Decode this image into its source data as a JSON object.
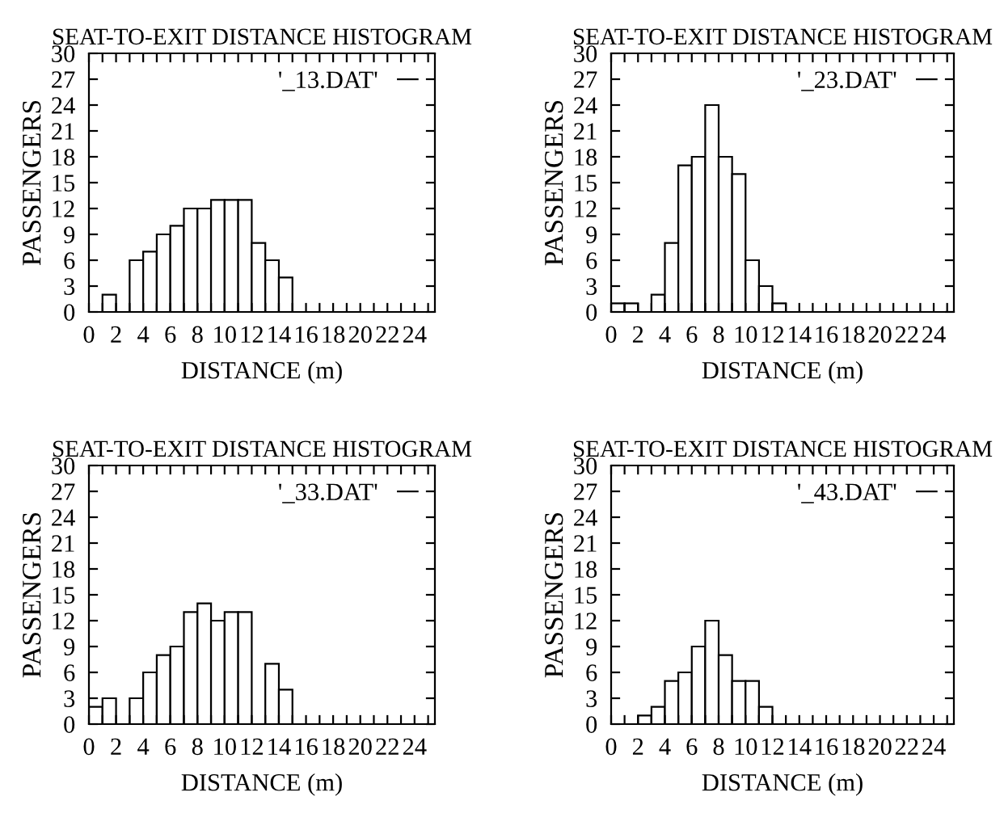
{
  "chart_data": [
    {
      "type": "histogram",
      "title": "SEAT-TO-EXIT DISTANCE HISTOGRAM",
      "xlabel": "DISTANCE (m)",
      "ylabel": "PASSENGERS",
      "bins": [
        0,
        1,
        2,
        3,
        4,
        5,
        6,
        7,
        8,
        9,
        10,
        11,
        12,
        13,
        14,
        15,
        16,
        17,
        18,
        19,
        20,
        21,
        22,
        23,
        24,
        25
      ],
      "series": [
        {
          "name": "'_13.DAT'",
          "color": "#000000",
          "values": [
            0,
            2,
            0,
            6,
            7,
            9,
            10,
            12,
            12,
            13,
            13,
            13,
            8,
            6,
            4,
            0,
            0,
            0,
            0,
            0,
            0,
            0,
            0,
            0,
            0
          ]
        }
      ],
      "xlim": [
        0,
        25.5
      ],
      "ylim": [
        0,
        30
      ],
      "xticks": [
        0,
        {
          "value": 1,
          "label": null
        },
        2,
        {
          "value": 3,
          "label": null
        },
        4,
        {
          "value": 5,
          "label": null
        },
        6,
        {
          "value": 7,
          "label": null
        },
        8,
        {
          "value": 9,
          "label": null
        },
        10,
        {
          "value": 11,
          "label": null
        },
        12,
        {
          "value": 13,
          "label": null
        },
        14,
        {
          "value": 15,
          "label": null
        },
        16,
        {
          "value": 17,
          "label": null
        },
        18,
        {
          "value": 19,
          "label": null
        },
        20,
        {
          "value": 21,
          "label": null
        },
        22,
        {
          "value": 23,
          "label": null
        },
        24,
        {
          "value": 25,
          "label": null
        }
      ],
      "yticks": [
        0,
        3,
        6,
        9,
        12,
        15,
        18,
        21,
        24,
        27,
        30
      ],
      "legend": "top right",
      "grid": false
    },
    {
      "type": "histogram",
      "title": "SEAT-TO-EXIT DISTANCE HISTOGRAM",
      "xlabel": "DISTANCE (m)",
      "ylabel": "PASSENGERS",
      "bins": [
        0,
        1,
        2,
        3,
        4,
        5,
        6,
        7,
        8,
        9,
        10,
        11,
        12,
        13,
        14,
        15,
        16,
        17,
        18,
        19,
        20,
        21,
        22,
        23,
        24,
        25
      ],
      "series": [
        {
          "name": "'_23.DAT'",
          "color": "#000000",
          "values": [
            1,
            1,
            0,
            2,
            8,
            17,
            18,
            24,
            18,
            16,
            6,
            3,
            1,
            0,
            0,
            0,
            0,
            0,
            0,
            0,
            0,
            0,
            0,
            0,
            0
          ]
        }
      ],
      "xlim": [
        0,
        25.5
      ],
      "ylim": [
        0,
        30
      ],
      "xticks": [
        0,
        {
          "value": 1,
          "label": null
        },
        2,
        {
          "value": 3,
          "label": null
        },
        4,
        {
          "value": 5,
          "label": null
        },
        6,
        {
          "value": 7,
          "label": null
        },
        8,
        {
          "value": 9,
          "label": null
        },
        10,
        {
          "value": 11,
          "label": null
        },
        12,
        {
          "value": 13,
          "label": null
        },
        14,
        {
          "value": 15,
          "label": null
        },
        16,
        {
          "value": 17,
          "label": null
        },
        18,
        {
          "value": 19,
          "label": null
        },
        20,
        {
          "value": 21,
          "label": null
        },
        22,
        {
          "value": 23,
          "label": null
        },
        24,
        {
          "value": 25,
          "label": null
        }
      ],
      "yticks": [
        0,
        3,
        6,
        9,
        12,
        15,
        18,
        21,
        24,
        27,
        30
      ],
      "legend": "top right",
      "grid": false
    },
    {
      "type": "histogram",
      "title": "SEAT-TO-EXIT DISTANCE HISTOGRAM",
      "xlabel": "DISTANCE (m)",
      "ylabel": "PASSENGERS",
      "bins": [
        0,
        1,
        2,
        3,
        4,
        5,
        6,
        7,
        8,
        9,
        10,
        11,
        12,
        13,
        14,
        15,
        16,
        17,
        18,
        19,
        20,
        21,
        22,
        23,
        24,
        25
      ],
      "series": [
        {
          "name": "'_33.DAT'",
          "color": "#000000",
          "values": [
            2,
            3,
            0,
            3,
            6,
            8,
            9,
            13,
            14,
            12,
            13,
            13,
            0,
            7,
            4,
            0,
            0,
            0,
            0,
            0,
            0,
            0,
            0,
            0,
            0
          ]
        }
      ],
      "xlim": [
        0,
        25.5
      ],
      "ylim": [
        0,
        30
      ],
      "xticks": [
        0,
        {
          "value": 1,
          "label": null
        },
        2,
        {
          "value": 3,
          "label": null
        },
        4,
        {
          "value": 5,
          "label": null
        },
        6,
        {
          "value": 7,
          "label": null
        },
        8,
        {
          "value": 9,
          "label": null
        },
        10,
        {
          "value": 11,
          "label": null
        },
        12,
        {
          "value": 13,
          "label": null
        },
        14,
        {
          "value": 15,
          "label": null
        },
        16,
        {
          "value": 17,
          "label": null
        },
        18,
        {
          "value": 19,
          "label": null
        },
        20,
        {
          "value": 21,
          "label": null
        },
        22,
        {
          "value": 23,
          "label": null
        },
        24,
        {
          "value": 25,
          "label": null
        }
      ],
      "yticks": [
        0,
        3,
        6,
        9,
        12,
        15,
        18,
        21,
        24,
        27,
        30
      ],
      "legend": "top right",
      "grid": false
    },
    {
      "type": "histogram",
      "title": "SEAT-TO-EXIT DISTANCE HISTOGRAM",
      "xlabel": "DISTANCE (m)",
      "ylabel": "PASSENGERS",
      "bins": [
        0,
        1,
        2,
        3,
        4,
        5,
        6,
        7,
        8,
        9,
        10,
        11,
        12,
        13,
        14,
        15,
        16,
        17,
        18,
        19,
        20,
        21,
        22,
        23,
        24,
        25
      ],
      "series": [
        {
          "name": "'_43.DAT'",
          "color": "#000000",
          "values": [
            0,
            0,
            1,
            2,
            5,
            6,
            9,
            12,
            8,
            5,
            5,
            2,
            0,
            0,
            0,
            0,
            0,
            0,
            0,
            0,
            0,
            0,
            0,
            0,
            0
          ]
        }
      ],
      "xlim": [
        0,
        25.5
      ],
      "ylim": [
        0,
        30
      ],
      "xticks": [
        0,
        {
          "value": 1,
          "label": null
        },
        2,
        {
          "value": 3,
          "label": null
        },
        4,
        {
          "value": 5,
          "label": null
        },
        6,
        {
          "value": 7,
          "label": null
        },
        8,
        {
          "value": 9,
          "label": null
        },
        10,
        {
          "value": 11,
          "label": null
        },
        12,
        {
          "value": 13,
          "label": null
        },
        14,
        {
          "value": 15,
          "label": null
        },
        16,
        {
          "value": 17,
          "label": null
        },
        18,
        {
          "value": 19,
          "label": null
        },
        20,
        {
          "value": 21,
          "label": null
        },
        22,
        {
          "value": 23,
          "label": null
        },
        24,
        {
          "value": 25,
          "label": null
        }
      ],
      "yticks": [
        0,
        3,
        6,
        9,
        12,
        15,
        18,
        21,
        24,
        27,
        30
      ],
      "legend": "top right",
      "grid": false
    }
  ]
}
